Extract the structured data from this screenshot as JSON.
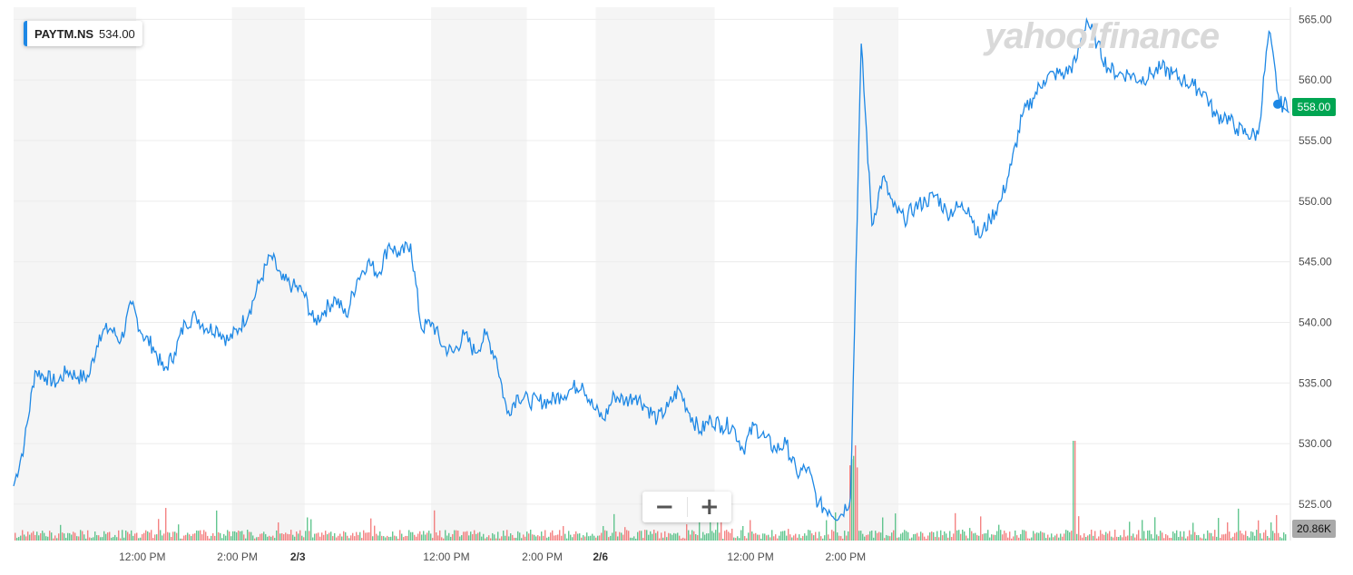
{
  "legend": {
    "symbol": "PAYTM.NS",
    "price": "534.00"
  },
  "watermark": "yahoo!finance",
  "current_price_tag": "558.00",
  "volume_tag": "20.86K",
  "zoom": {
    "minus": "−",
    "plus": "+"
  },
  "colors": {
    "line": "#1e88e5",
    "up": "#2fb36b",
    "down": "#f05a5a",
    "price_tag": "#00a552",
    "band": "#f5f5f5"
  },
  "chart_data": {
    "type": "line",
    "title": "",
    "xlabel": "",
    "ylabel": "",
    "ylim": [
      522.0,
      566.0
    ],
    "y_ticks": [
      "565.00",
      "560.00",
      "555.00",
      "550.00",
      "545.00",
      "540.00",
      "535.00",
      "530.00",
      "525.00"
    ],
    "x_ticks": [
      {
        "label": "12:00 PM",
        "x": 0.168,
        "bold": false
      },
      {
        "label": "2:00 PM",
        "x": 0.292,
        "bold": false
      },
      {
        "label": "2/3",
        "x": 0.371,
        "bold": true
      },
      {
        "label": "12:00 PM",
        "x": 0.565,
        "bold": false
      },
      {
        "label": "2:00 PM",
        "x": 0.69,
        "bold": false
      },
      {
        "label": "2/6",
        "x": 0.766,
        "bold": true
      },
      {
        "label": "12:00 PM",
        "x": 0.962,
        "bold": false
      },
      {
        "label": "2:00 PM",
        "x": 1.086,
        "bold": false
      }
    ],
    "bands": [
      [
        0.0,
        0.16
      ],
      [
        0.285,
        0.38
      ],
      [
        0.545,
        0.67
      ],
      [
        0.76,
        0.915
      ],
      [
        1.07,
        1.155
      ]
    ],
    "series": [
      {
        "values": [
          526.5,
          530,
          536,
          535.5,
          535,
          536,
          535.5,
          535.5,
          539,
          539.5,
          538.5,
          541.5,
          539,
          538,
          536,
          537.5,
          540,
          540.5,
          539.5,
          539.5,
          538.5,
          539.5,
          541,
          543.5,
          545.5,
          543.5,
          543,
          542.5,
          540,
          541,
          542,
          540.5,
          543.5,
          545,
          544,
          546.5,
          545.5,
          546.5,
          539.5,
          540,
          538,
          537.5,
          539,
          537.5,
          539,
          537,
          532.5,
          534,
          533.5,
          533.5,
          533.5,
          534,
          534.5,
          535,
          533,
          532,
          534,
          533.5,
          534,
          533,
          532,
          533,
          534.5,
          532.5,
          531,
          532,
          531.5,
          531.5,
          529.5,
          531.5,
          530.5,
          529.5,
          530,
          527.5,
          528,
          525,
          524.5,
          524,
          525.5,
          563,
          548,
          552,
          549.5,
          548.5,
          549.5,
          550,
          550.5,
          549,
          549.5,
          549.5,
          547,
          548.5,
          550,
          553,
          557,
          558.5,
          560,
          560.5,
          560.5,
          561.5,
          565,
          563,
          561,
          560.5,
          560.5,
          560,
          560.5,
          561,
          560.5,
          560,
          559.5,
          559,
          557,
          557,
          556,
          555.5,
          555.5,
          564,
          558,
          558
        ]
      }
    ]
  }
}
